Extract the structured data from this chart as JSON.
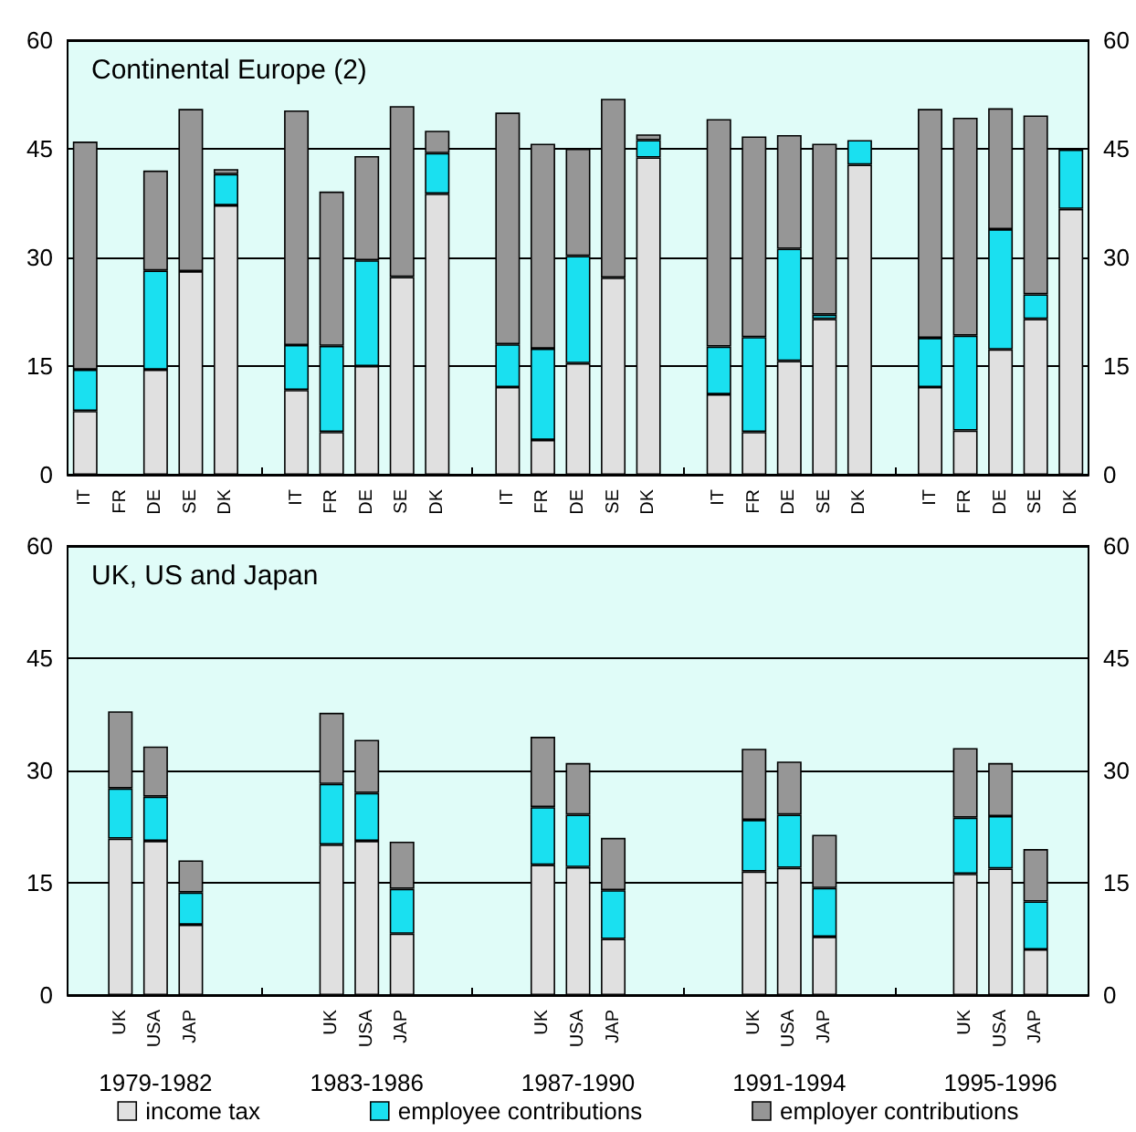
{
  "chart_data": [
    {
      "type": "bar",
      "title": "Continental Europe (2)",
      "stacked": true,
      "grid": "y",
      "categories": [
        "IT",
        "FR",
        "DE",
        "SE",
        "DK",
        null,
        "IT",
        "FR",
        "DE",
        "SE",
        "DK",
        null,
        "IT",
        "FR",
        "DE",
        "SE",
        "DK",
        null,
        "IT",
        "FR",
        "DE",
        "SE",
        "DK",
        null,
        "IT",
        "FR",
        "DE",
        "SE",
        "DK"
      ],
      "series": [
        {
          "color": "#e0e0e0",
          "values": [
            8.8,
            null,
            14.5,
            28.1,
            37.2,
            null,
            11.7,
            5.9,
            15.0,
            27.3,
            38.8,
            null,
            12.1,
            4.8,
            15.4,
            27.2,
            43.8,
            null,
            11.1,
            5.9,
            15.7,
            21.5,
            42.8,
            null,
            12.1,
            6.1,
            17.3,
            21.5,
            36.7
          ]
        },
        {
          "color": "#1ae0f0",
          "values": [
            5.7,
            null,
            13.7,
            null,
            4.3,
            null,
            6.2,
            11.9,
            14.6,
            null,
            5.6,
            null,
            5.9,
            12.6,
            14.8,
            null,
            2.4,
            null,
            6.6,
            13.1,
            15.5,
            0.6,
            3.4,
            null,
            6.8,
            13.1,
            16.6,
            3.4,
            8.2
          ]
        },
        {
          "color": "#969696",
          "values": [
            31.5,
            null,
            13.8,
            22.4,
            0.7,
            null,
            32.4,
            21.3,
            14.4,
            23.6,
            3.1,
            null,
            32.0,
            28.3,
            14.8,
            24.7,
            0.8,
            null,
            31.4,
            27.7,
            15.7,
            23.6,
            null,
            null,
            31.6,
            30.1,
            16.7,
            24.7,
            null
          ]
        }
      ],
      "ylim": [
        0,
        60
      ],
      "yticks": [
        0,
        15,
        30,
        45,
        60
      ],
      "y2lim": [
        0,
        60
      ],
      "y2ticks": [
        0,
        15,
        30,
        45,
        60
      ]
    },
    {
      "type": "bar",
      "title": "UK, US and Japan",
      "stacked": true,
      "grid": "y",
      "legend": "bottom",
      "categories": [
        null,
        "UK",
        "USA",
        "JAP",
        null,
        null,
        null,
        "UK",
        "USA",
        "JAP",
        null,
        null,
        null,
        "UK",
        "USA",
        "JAP",
        null,
        null,
        null,
        "UK",
        "USA",
        "JAP",
        null,
        null,
        null,
        "UK",
        "USA",
        "JAP",
        null
      ],
      "series": [
        {
          "name": "income tax",
          "color": "#e0e0e0",
          "values": [
            null,
            20.9,
            20.6,
            9.4,
            null,
            null,
            null,
            20.1,
            20.6,
            8.2,
            null,
            null,
            null,
            17.4,
            17.1,
            7.5,
            null,
            null,
            null,
            16.5,
            17.0,
            7.8,
            null,
            null,
            null,
            16.2,
            16.9,
            6.1,
            null
          ]
        },
        {
          "name": "employee contributions",
          "color": "#1ae0f0",
          "values": [
            null,
            6.7,
            5.9,
            4.3,
            null,
            null,
            null,
            8.1,
            6.4,
            6.0,
            null,
            null,
            null,
            7.7,
            7.0,
            6.5,
            null,
            null,
            null,
            6.9,
            7.1,
            6.5,
            null,
            null,
            null,
            7.5,
            7.0,
            6.4,
            null
          ]
        },
        {
          "name": "employer contributions",
          "color": "#969696",
          "values": [
            null,
            10.3,
            6.7,
            4.3,
            null,
            null,
            null,
            9.5,
            7.1,
            6.3,
            null,
            null,
            null,
            9.4,
            6.9,
            7.0,
            null,
            null,
            null,
            9.5,
            7.1,
            7.1,
            null,
            null,
            null,
            9.3,
            7.1,
            7.0,
            null
          ]
        }
      ],
      "ylim": [
        0,
        60
      ],
      "yticks": [
        0,
        15,
        30,
        45,
        60
      ],
      "y2lim": [
        0,
        60
      ],
      "y2ticks": [
        0,
        15,
        30,
        45,
        60
      ],
      "annotations": [
        "1979-1982",
        "1983-1986",
        "1987-1990",
        "1991-1994",
        "1995-1996"
      ]
    }
  ]
}
